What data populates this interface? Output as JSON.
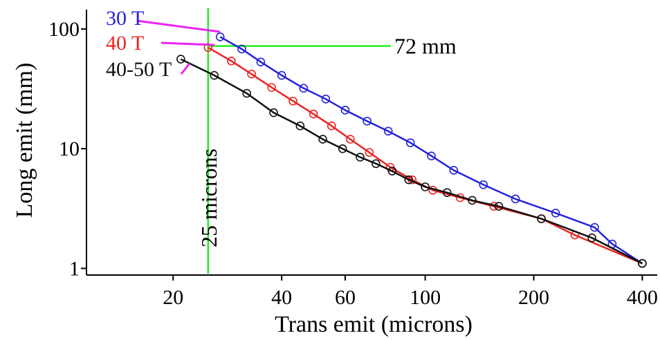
{
  "chart_data": {
    "type": "line",
    "xlabel": "Trans emit (microns)",
    "ylabel": "Long emit (mm)",
    "x_scale": "log",
    "y_scale": "log",
    "xlim": [
      11.5,
      440
    ],
    "ylim": [
      0.88,
      145
    ],
    "x_ticks": [
      20,
      40,
      60,
      100,
      200,
      400
    ],
    "x_tick_labels": [
      "20",
      "40",
      "60",
      "100",
      "200",
      "400"
    ],
    "y_ticks": [
      1,
      10,
      100
    ],
    "y_tick_labels": [
      "1",
      "10",
      "100"
    ],
    "grid": false,
    "legend_position": "top-left",
    "series": [
      {
        "name": "30 T",
        "color": "#2222dd",
        "x": [
          27,
          31,
          35,
          40,
          46,
          53,
          60,
          69,
          79,
          91,
          104,
          120,
          145,
          178,
          230,
          295,
          330,
          400
        ],
        "y": [
          86,
          68,
          53,
          41,
          32,
          26,
          21,
          17,
          14,
          11.2,
          8.7,
          6.6,
          5.0,
          3.8,
          2.9,
          2.2,
          1.6,
          1.1
        ]
      },
      {
        "name": "40 T",
        "color": "#ee2222",
        "x": [
          25,
          29,
          33,
          37.5,
          43,
          49,
          55,
          62,
          70,
          80,
          92,
          105,
          125,
          155,
          210,
          260,
          400
        ],
        "y": [
          70,
          54,
          42,
          32.5,
          25,
          19.5,
          15.5,
          12,
          9.3,
          7.0,
          5.5,
          4.5,
          3.9,
          3.3,
          2.6,
          1.9,
          1.1
        ]
      },
      {
        "name": "40-50 T",
        "color": "#111111",
        "x": [
          21,
          26,
          32,
          38,
          45,
          52,
          59,
          66,
          73,
          81,
          90,
          100,
          115,
          135,
          160,
          210,
          290,
          400
        ],
        "y": [
          56,
          41,
          29,
          20,
          15.5,
          12,
          10,
          8.5,
          7.5,
          6.5,
          5.5,
          4.8,
          4.3,
          3.7,
          3.3,
          2.6,
          1.8,
          1.1
        ]
      }
    ],
    "annotations": {
      "vertical_label": "25 microns",
      "vertical_x": 25,
      "horizontal_label": "72 mm",
      "horizontal_y": 72,
      "line_color": "#22ee22",
      "pointer_color": "#ee22ee"
    }
  }
}
